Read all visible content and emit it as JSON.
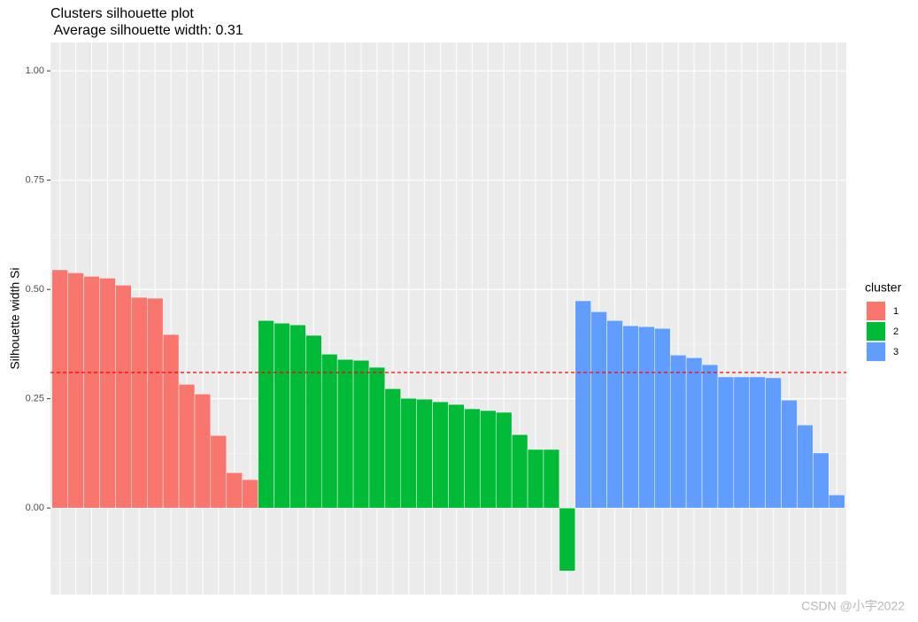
{
  "chart_data": {
    "type": "bar",
    "title": "Clusters silhouette plot",
    "subtitle": " Average silhouette width: 0.31",
    "y_label": "Silhouette width Si",
    "legend_title": "cluster",
    "legend_position": "right",
    "grid": true,
    "ylim": [
      -0.198,
      1.065
    ],
    "yticks": [
      {
        "value": 0,
        "label": "0.00"
      },
      {
        "value": 0.25,
        "label": "0.25"
      },
      {
        "value": 0.5,
        "label": "0.50"
      },
      {
        "value": 0.75,
        "label": "0.75"
      },
      {
        "value": 1,
        "label": "1.00"
      }
    ],
    "hline": 0.31,
    "hline_color": "#ff0000",
    "series": [
      {
        "name": "1",
        "color": "#F8766D",
        "values": [
          0.545,
          0.538,
          0.53,
          0.526,
          0.51,
          0.482,
          0.48,
          0.397,
          0.283,
          0.261,
          0.166,
          0.081,
          0.065
        ]
      },
      {
        "name": "2",
        "color": "#00BA38",
        "values": [
          0.429,
          0.423,
          0.419,
          0.395,
          0.352,
          0.34,
          0.338,
          0.322,
          0.273,
          0.251,
          0.249,
          0.243,
          0.237,
          0.227,
          0.223,
          0.219,
          0.168,
          0.134,
          0.134,
          -0.144
        ]
      },
      {
        "name": "3",
        "color": "#619CFF",
        "values": [
          0.474,
          0.449,
          0.429,
          0.417,
          0.415,
          0.411,
          0.35,
          0.344,
          0.328,
          0.3,
          0.3,
          0.3,
          0.298,
          0.247,
          0.19,
          0.126,
          0.03
        ]
      }
    ]
  },
  "watermark": "CSDN @小宇2022"
}
